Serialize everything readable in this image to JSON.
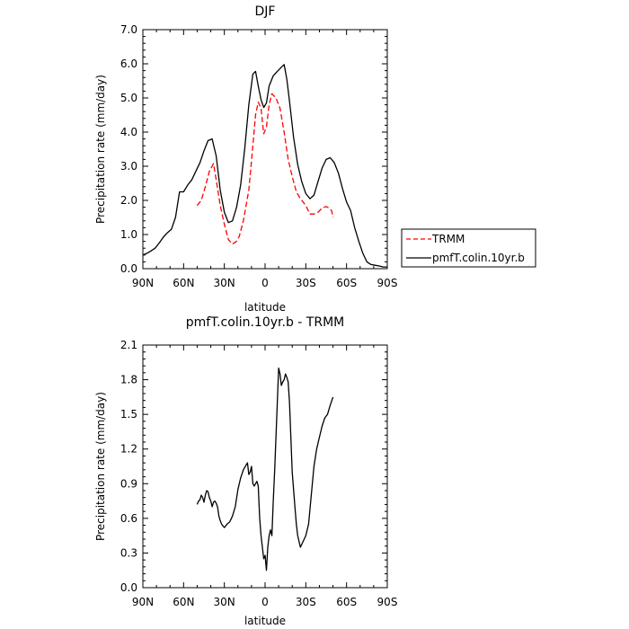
{
  "chart_data": [
    {
      "type": "line",
      "title": "DJF",
      "xlabel": "latitude",
      "ylabel": "Precipitation rate (mm/day)",
      "x_ticks": [
        {
          "v": 90,
          "label": "90N"
        },
        {
          "v": 60,
          "label": "60N"
        },
        {
          "v": 30,
          "label": "30N"
        },
        {
          "v": 0,
          "label": "0"
        },
        {
          "v": -30,
          "label": "30S"
        },
        {
          "v": -60,
          "label": "60S"
        },
        {
          "v": -90,
          "label": "90S"
        }
      ],
      "xlim": [
        90,
        -90
      ],
      "ylim": [
        0,
        7
      ],
      "y_ticks": [
        "0.0",
        "1.0",
        "2.0",
        "3.0",
        "4.0",
        "5.0",
        "6.0",
        "7.0"
      ],
      "y_tick_values": [
        0,
        1,
        2,
        3,
        4,
        5,
        6,
        7
      ],
      "legend_position": "right",
      "series": [
        {
          "name": "TRMM",
          "color": "#ff0000",
          "dash": "dashed",
          "x": [
            50,
            47,
            44,
            41,
            38,
            36,
            33,
            30,
            27,
            24,
            21,
            19,
            16,
            12,
            9,
            7,
            5,
            3,
            1,
            -1,
            -3,
            -5,
            -8,
            -11,
            -14,
            -17,
            -20,
            -23,
            -26,
            -30,
            -33,
            -36,
            -39,
            -42,
            -45,
            -47,
            -49,
            -50
          ],
          "y": [
            1.85,
            2.0,
            2.4,
            2.85,
            3.08,
            2.6,
            1.85,
            1.3,
            0.85,
            0.72,
            0.8,
            0.95,
            1.4,
            2.3,
            3.6,
            4.5,
            4.88,
            4.7,
            3.95,
            4.15,
            4.8,
            5.12,
            5.0,
            4.7,
            4.0,
            3.2,
            2.7,
            2.25,
            2.05,
            1.85,
            1.6,
            1.6,
            1.65,
            1.78,
            1.82,
            1.78,
            1.7,
            1.5
          ]
        },
        {
          "name": "pmfT.colin.10yr.b",
          "color": "#000000",
          "dash": "solid",
          "x": [
            90,
            87,
            84,
            81,
            78,
            75,
            72,
            69,
            66,
            63,
            60,
            57,
            54,
            51,
            48,
            45,
            42,
            39,
            36,
            33,
            30,
            27,
            24,
            21,
            18,
            15,
            12,
            9,
            7,
            5,
            3,
            1,
            -1,
            -3,
            -6,
            -9,
            -12,
            -14,
            -16,
            -18,
            -21,
            -24,
            -27,
            -30,
            -33,
            -36,
            -39,
            -42,
            -45,
            -48,
            -51,
            -54,
            -57,
            -60,
            -63,
            -66,
            -69,
            -72,
            -75,
            -78,
            -81,
            -84,
            -87,
            -90
          ],
          "y": [
            0.4,
            0.45,
            0.52,
            0.6,
            0.75,
            0.92,
            1.05,
            1.15,
            1.5,
            2.25,
            2.25,
            2.45,
            2.6,
            2.85,
            3.1,
            3.45,
            3.75,
            3.8,
            3.3,
            2.3,
            1.65,
            1.35,
            1.4,
            1.8,
            2.45,
            3.5,
            4.8,
            5.7,
            5.78,
            5.35,
            4.95,
            4.72,
            4.85,
            5.35,
            5.65,
            5.78,
            5.9,
            5.98,
            5.55,
            4.9,
            3.85,
            3.05,
            2.55,
            2.2,
            2.05,
            2.15,
            2.55,
            2.95,
            3.2,
            3.25,
            3.1,
            2.8,
            2.35,
            1.95,
            1.7,
            1.2,
            0.8,
            0.45,
            0.2,
            0.12,
            0.1,
            0.08,
            0.05,
            0.05
          ]
        }
      ]
    },
    {
      "type": "line",
      "title": "pmfT.colin.10yr.b - TRMM",
      "xlabel": "latitude",
      "ylabel": "Precipitation rate (mm/day)",
      "x_ticks": [
        {
          "v": 90,
          "label": "90N"
        },
        {
          "v": 60,
          "label": "60N"
        },
        {
          "v": 30,
          "label": "30N"
        },
        {
          "v": 0,
          "label": "0"
        },
        {
          "v": -30,
          "label": "30S"
        },
        {
          "v": -60,
          "label": "60S"
        },
        {
          "v": -90,
          "label": "90S"
        }
      ],
      "xlim": [
        90,
        -90
      ],
      "ylim": [
        0,
        2.1
      ],
      "y_ticks": [
        "0.0",
        "0.3",
        "0.6",
        "0.9",
        "1.2",
        "1.5",
        "1.8",
        "2.1"
      ],
      "y_tick_values": [
        0,
        0.3,
        0.6,
        0.9,
        1.2,
        1.5,
        1.8,
        2.1
      ],
      "series": [
        {
          "color": "#000000",
          "dash": "solid",
          "x": [
            50,
            49,
            48,
            47,
            46,
            45,
            44,
            43,
            42,
            41,
            40,
            39,
            38,
            37,
            36,
            35,
            34,
            33,
            32,
            30,
            28,
            26,
            24,
            22,
            20,
            18,
            16,
            14,
            13,
            12,
            11,
            10,
            9,
            8,
            7,
            6,
            5,
            4,
            3,
            2,
            1,
            0,
            -1,
            -2,
            -3,
            -4,
            -5,
            -6,
            -7,
            -8,
            -9,
            -10,
            -11,
            -12,
            -13,
            -14,
            -15,
            -16,
            -17,
            -18,
            -19,
            -20,
            -21,
            -22,
            -23,
            -24,
            -26,
            -28,
            -30,
            -32,
            -34,
            -36,
            -38,
            -40,
            -42,
            -44,
            -46,
            -48,
            -50
          ],
          "y": [
            0.72,
            0.75,
            0.76,
            0.8,
            0.78,
            0.74,
            0.8,
            0.84,
            0.83,
            0.78,
            0.75,
            0.7,
            0.74,
            0.75,
            0.73,
            0.7,
            0.62,
            0.58,
            0.55,
            0.52,
            0.55,
            0.57,
            0.62,
            0.7,
            0.85,
            0.95,
            1.02,
            1.06,
            1.08,
            0.98,
            1.0,
            1.05,
            0.9,
            0.88,
            0.9,
            0.92,
            0.88,
            0.6,
            0.45,
            0.35,
            0.25,
            0.28,
            0.15,
            0.35,
            0.45,
            0.5,
            0.45,
            0.75,
            1.0,
            1.3,
            1.6,
            1.9,
            1.85,
            1.75,
            1.78,
            1.8,
            1.85,
            1.82,
            1.78,
            1.6,
            1.3,
            1.0,
            0.85,
            0.7,
            0.55,
            0.45,
            0.35,
            0.4,
            0.45,
            0.55,
            0.8,
            1.05,
            1.2,
            1.3,
            1.4,
            1.47,
            1.5,
            1.58,
            1.65
          ]
        }
      ]
    }
  ]
}
